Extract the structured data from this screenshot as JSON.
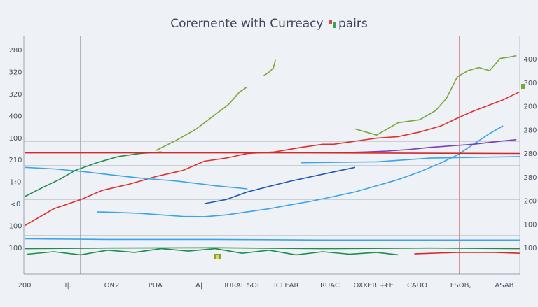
{
  "chart_data": {
    "type": "line",
    "title": "Corernente with Curreacy",
    "title_suffix": "pairs",
    "xlabel": "",
    "ylabel": "",
    "grid": false,
    "legend": "none",
    "x_ticks": [
      "200",
      "I|.",
      "ON2",
      "PUA",
      "A|",
      "IURAL SOL",
      "ICLEAR",
      "RUAC",
      "OXKER ÷ŁE",
      "CAUO",
      "FSOB,",
      "ASAB"
    ],
    "y_ticks_left": [
      "280",
      "320",
      "320",
      "400",
      "100",
      "210",
      "1‹0",
      "<0",
      "100",
      "100"
    ],
    "y_ticks_right": [
      "400",
      "300",
      "200",
      "280",
      "280",
      "280",
      "2c0",
      "100",
      "100"
    ],
    "series": [
      {
        "color": "#7aa63a",
        "segments": [
          [
            [
              0.49,
              0.247
            ],
            [
              0.5,
              0.235
            ],
            [
              0.508,
              0.222
            ],
            [
              0.512,
              0.195
            ]
          ],
          [
            [
              0.29,
              0.49
            ],
            [
              0.33,
              0.455
            ],
            [
              0.365,
              0.42
            ],
            [
              0.395,
              0.38
            ],
            [
              0.425,
              0.34
            ],
            [
              0.445,
              0.3
            ],
            [
              0.458,
              0.285
            ]
          ],
          [
            [
              0.66,
              0.42
            ],
            [
              0.7,
              0.44
            ],
            [
              0.74,
              0.4
            ],
            [
              0.78,
              0.39
            ],
            [
              0.81,
              0.36
            ],
            [
              0.83,
              0.32
            ],
            [
              0.85,
              0.25
            ],
            [
              0.87,
              0.23
            ],
            [
              0.89,
              0.22
            ],
            [
              0.91,
              0.23
            ],
            [
              0.93,
              0.19
            ],
            [
              0.95,
              0.185
            ],
            [
              0.96,
              0.181
            ]
          ]
        ]
      },
      {
        "color": "#e0302e",
        "segments": [
          [
            [
              0.046,
              0.735
            ],
            [
              0.1,
              0.68
            ],
            [
              0.15,
              0.65
            ],
            [
              0.19,
              0.62
            ],
            [
              0.24,
              0.6
            ],
            [
              0.29,
              0.575
            ],
            [
              0.34,
              0.555
            ],
            [
              0.38,
              0.525
            ],
            [
              0.42,
              0.515
            ],
            [
              0.46,
              0.5
            ],
            [
              0.51,
              0.495
            ],
            [
              0.56,
              0.48
            ],
            [
              0.6,
              0.47
            ],
            [
              0.62,
              0.47
            ],
            [
              0.66,
              0.46
            ],
            [
              0.7,
              0.45
            ],
            [
              0.74,
              0.445
            ],
            [
              0.78,
              0.43
            ],
            [
              0.82,
              0.41
            ],
            [
              0.85,
              0.385
            ],
            [
              0.88,
              0.362
            ],
            [
              0.91,
              0.342
            ],
            [
              0.935,
              0.325
            ],
            [
              0.965,
              0.3
            ]
          ]
        ]
      },
      {
        "color": "#1f55b5",
        "segments": [
          [
            [
              0.38,
              0.663
            ],
            [
              0.42,
              0.65
            ],
            [
              0.46,
              0.625
            ],
            [
              0.5,
              0.607
            ],
            [
              0.54,
              0.59
            ],
            [
              0.58,
              0.575
            ],
            [
              0.62,
              0.56
            ],
            [
              0.66,
              0.545
            ]
          ]
        ]
      },
      {
        "color": "#3da3e8",
        "segments": [
          [
            [
              0.18,
              0.69
            ],
            [
              0.22,
              0.692
            ],
            [
              0.26,
              0.695
            ],
            [
              0.3,
              0.7
            ],
            [
              0.34,
              0.705
            ],
            [
              0.38,
              0.706
            ],
            [
              0.42,
              0.7
            ],
            [
              0.46,
              0.69
            ],
            [
              0.5,
              0.68
            ],
            [
              0.54,
              0.667
            ],
            [
              0.58,
              0.655
            ],
            [
              0.62,
              0.64
            ],
            [
              0.66,
              0.625
            ],
            [
              0.7,
              0.605
            ],
            [
              0.74,
              0.585
            ],
            [
              0.78,
              0.56
            ],
            [
              0.82,
              0.53
            ],
            [
              0.85,
              0.505
            ],
            [
              0.88,
              0.47
            ],
            [
              0.91,
              0.435
            ],
            [
              0.935,
              0.41
            ]
          ],
          [
            [
              0.046,
              0.545
            ],
            [
              0.1,
              0.55
            ],
            [
              0.15,
              0.558
            ],
            [
              0.2,
              0.568
            ],
            [
              0.26,
              0.58
            ],
            [
              0.33,
              0.59
            ],
            [
              0.4,
              0.605
            ],
            [
              0.46,
              0.615
            ]
          ],
          [
            [
              0.046,
              0.778
            ],
            [
              0.2,
              0.78
            ],
            [
              0.4,
              0.78
            ],
            [
              0.6,
              0.782
            ],
            [
              0.8,
              0.782
            ],
            [
              0.966,
              0.782
            ]
          ],
          [
            [
              0.56,
              0.53
            ],
            [
              0.7,
              0.527
            ],
            [
              0.8,
              0.515
            ],
            [
              0.966,
              0.51
            ]
          ]
        ]
      },
      {
        "color": "#7a3dbd",
        "segments": [
          [
            [
              0.64,
              0.497
            ],
            [
              0.68,
              0.495
            ],
            [
              0.72,
              0.492
            ],
            [
              0.76,
              0.487
            ],
            [
              0.8,
              0.48
            ],
            [
              0.84,
              0.475
            ],
            [
              0.88,
              0.47
            ],
            [
              0.92,
              0.462
            ],
            [
              0.96,
              0.455
            ]
          ]
        ]
      },
      {
        "color": "#1f8c4e",
        "segments": [
          [
            [
              0.046,
              0.64
            ],
            [
              0.08,
              0.61
            ],
            [
              0.11,
              0.585
            ],
            [
              0.14,
              0.555
            ],
            [
              0.18,
              0.53
            ],
            [
              0.22,
              0.51
            ],
            [
              0.26,
              0.5
            ],
            [
              0.3,
              0.495
            ]
          ],
          [
            [
              0.05,
              0.828
            ],
            [
              0.1,
              0.82
            ],
            [
              0.15,
              0.83
            ],
            [
              0.2,
              0.815
            ],
            [
              0.25,
              0.822
            ],
            [
              0.3,
              0.81
            ],
            [
              0.35,
              0.818
            ],
            [
              0.4,
              0.81
            ],
            [
              0.45,
              0.825
            ],
            [
              0.5,
              0.815
            ],
            [
              0.55,
              0.83
            ],
            [
              0.6,
              0.82
            ],
            [
              0.65,
              0.828
            ],
            [
              0.7,
              0.822
            ],
            [
              0.74,
              0.83
            ]
          ],
          [
            [
              0.046,
              0.81
            ],
            [
              0.2,
              0.808
            ],
            [
              0.4,
              0.807
            ],
            [
              0.6,
              0.81
            ],
            [
              0.8,
              0.808
            ],
            [
              0.966,
              0.81
            ]
          ]
        ]
      },
      {
        "color": "#d62828",
        "segments": [
          [
            [
              0.77,
              0.827
            ],
            [
              0.85,
              0.822
            ],
            [
              0.92,
              0.822
            ],
            [
              0.966,
              0.825
            ]
          ],
          [
            [
              0.046,
              0.498
            ],
            [
              0.3,
              0.498
            ],
            [
              0.56,
              0.498
            ],
            [
              0.966,
              0.5
            ]
          ]
        ]
      }
    ]
  }
}
